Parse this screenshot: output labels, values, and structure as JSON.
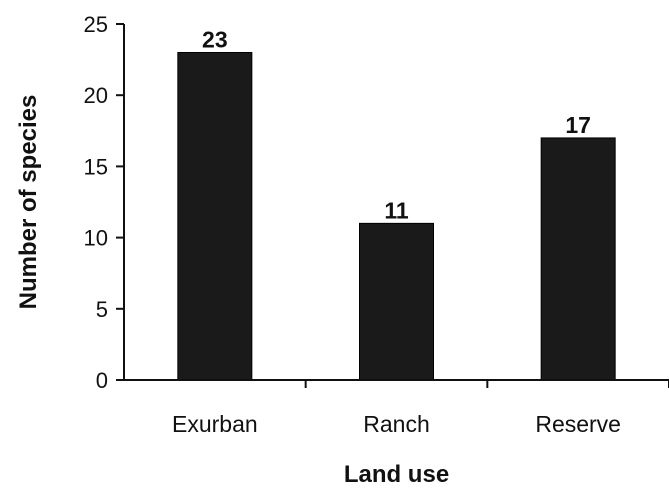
{
  "chart_data": {
    "type": "bar",
    "categories": [
      "Exurban",
      "Ranch",
      "Reserve"
    ],
    "values": [
      23,
      11,
      17
    ],
    "data_labels": [
      "23",
      "11",
      "17"
    ],
    "xlabel": "Land use",
    "ylabel": "Number of species",
    "ylim": [
      0,
      25
    ],
    "yticks": [
      0,
      5,
      10,
      15,
      20,
      25
    ],
    "ytick_labels": [
      "0",
      "5",
      "10",
      "15",
      "20",
      "25"
    ],
    "grid": false,
    "legend": "none",
    "bar_color": "#1a1a1a"
  }
}
